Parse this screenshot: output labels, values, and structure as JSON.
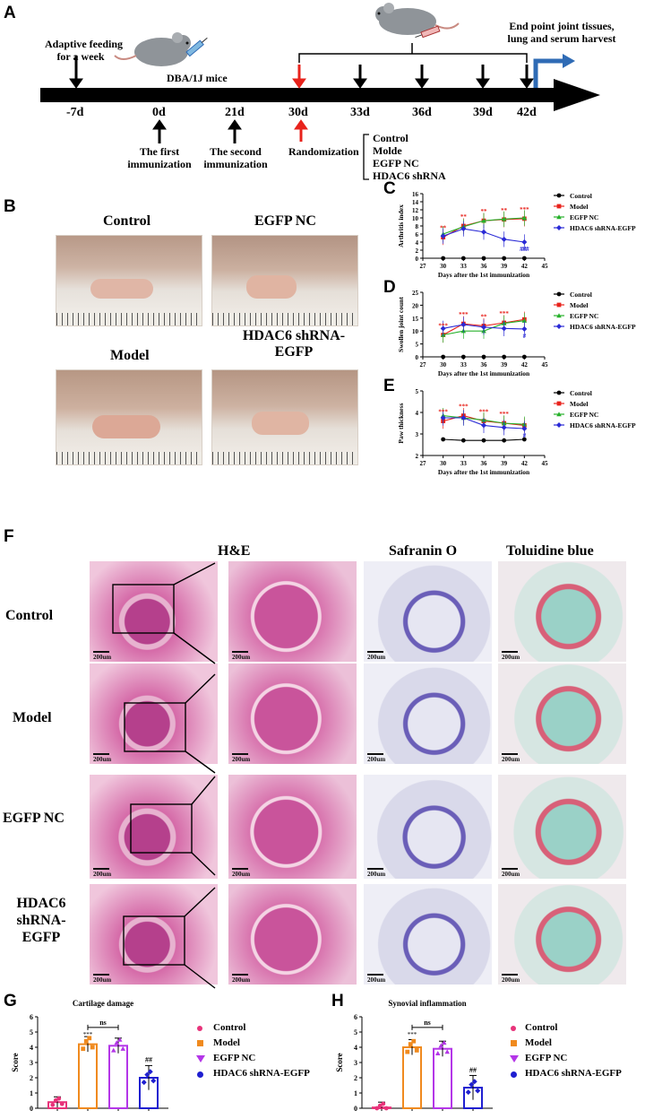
{
  "panels": {
    "A": "A",
    "B": "B",
    "C": "C",
    "D": "D",
    "E": "E",
    "F": "F",
    "G": "G",
    "H": "H"
  },
  "timeline": {
    "adaptive_feeding": "Adaptive feeding\nfor a week",
    "mouse_strain": "DBA/1J mice",
    "end_point": "End point joint tissues,\nlung and serum harvest",
    "days": [
      "-7d",
      "0d",
      "21d",
      "30d",
      "33d",
      "36d",
      "39d",
      "42d"
    ],
    "first_immunization": "The first\nimmunization",
    "second_immunization": "The second\nimmunization",
    "randomization": "Randomization",
    "groups": [
      "Control",
      "Molde",
      "EGFP NC",
      "HDAC6 shRNA"
    ]
  },
  "photos": {
    "control": "Control",
    "egfp_nc": "EGFP NC",
    "model": "Model",
    "hdac6": "HDAC6 shRNA-\nEGFP"
  },
  "histology": {
    "columns": [
      "H&E",
      "Safranin O",
      "Toluidine blue"
    ],
    "rows": [
      "Control",
      "Model",
      "EGFP NC",
      "HDAC6\nshRNA-\nEGFP"
    ],
    "scale": "200um"
  },
  "legend": [
    "Control",
    "Model",
    "EGFP NC",
    "HDAC6 shRNA-EGFP"
  ],
  "colors": {
    "control": "#000000",
    "model": "#e8231c",
    "egfp": "#27b12b",
    "hdac6": "#2a2ad6",
    "g_control": "#e8337a",
    "g_model": "#f08a1e",
    "g_egfp": "#b436e8",
    "g_hdac6": "#1f1fd0",
    "arrow_red": "#e8231c",
    "arrow_blue": "#2f6bb5"
  },
  "chart_data": [
    {
      "id": "C",
      "type": "line",
      "xlabel": "Days after the 1st immunization",
      "ylabel": "Arthritis index",
      "x": [
        30,
        33,
        36,
        39,
        42
      ],
      "xlim": [
        27,
        45
      ],
      "xticks": [
        27,
        30,
        33,
        36,
        39,
        42,
        45
      ],
      "ylim": [
        0,
        16
      ],
      "yticks": [
        0,
        2,
        4,
        6,
        8,
        10,
        12,
        14,
        16
      ],
      "series": [
        {
          "name": "Control",
          "values": [
            0,
            0,
            0,
            0,
            0
          ]
        },
        {
          "name": "Model",
          "values": [
            5.2,
            8,
            9.3,
            9.6,
            9.8
          ]
        },
        {
          "name": "EGFP NC",
          "values": [
            6,
            7.8,
            9.3,
            9.7,
            10
          ]
        },
        {
          "name": "HDAC6 shRNA-EGFP",
          "values": [
            5.5,
            7.3,
            6.5,
            4.7,
            4.0
          ]
        }
      ],
      "annotations": [
        "**",
        "**",
        "**",
        "**",
        "***",
        "##",
        "###"
      ]
    },
    {
      "id": "D",
      "type": "line",
      "xlabel": "Days after the 1st immunization",
      "ylabel": "Swollen joint count",
      "x": [
        30,
        33,
        36,
        39,
        42
      ],
      "xlim": [
        27,
        45
      ],
      "xticks": [
        27,
        30,
        33,
        36,
        39,
        42,
        45
      ],
      "ylim": [
        0,
        25
      ],
      "yticks": [
        0,
        5,
        10,
        15,
        20,
        25
      ],
      "series": [
        {
          "name": "Control",
          "values": [
            0,
            0,
            0,
            0,
            0
          ]
        },
        {
          "name": "Model",
          "values": [
            8.5,
            12.8,
            12,
            13.2,
            14.5
          ]
        },
        {
          "name": "EGFP NC",
          "values": [
            8.5,
            10,
            10,
            13,
            14
          ]
        },
        {
          "name": "HDAC6 shRNA-EGFP",
          "values": [
            11,
            12.5,
            11.5,
            11,
            10.8
          ]
        }
      ],
      "annotations": [
        "***",
        "***",
        "**",
        "***",
        "#"
      ]
    },
    {
      "id": "E",
      "type": "line",
      "xlabel": "Days after the 1st immunization",
      "ylabel": "Paw thickness",
      "x": [
        30,
        33,
        36,
        39,
        42
      ],
      "xlim": [
        27,
        45
      ],
      "xticks": [
        27,
        30,
        33,
        36,
        39,
        42,
        45
      ],
      "ylim": [
        2,
        5
      ],
      "yticks": [
        2,
        3,
        4,
        5
      ],
      "series": [
        {
          "name": "Control",
          "values": [
            2.75,
            2.7,
            2.7,
            2.7,
            2.75
          ]
        },
        {
          "name": "Model",
          "values": [
            3.6,
            3.85,
            3.6,
            3.5,
            3.4
          ]
        },
        {
          "name": "EGFP NC",
          "values": [
            3.85,
            3.75,
            3.65,
            3.5,
            3.45
          ]
        },
        {
          "name": "HDAC6 shRNA-EGFP",
          "values": [
            3.75,
            3.75,
            3.4,
            3.3,
            3.25
          ]
        }
      ],
      "annotations": [
        "***",
        "***",
        "***",
        "***",
        "#"
      ]
    },
    {
      "id": "G",
      "type": "bar",
      "title": "Cartilage damage",
      "ylabel": "Score",
      "ylim": [
        0,
        6
      ],
      "yticks": [
        0,
        1,
        2,
        3,
        4,
        5,
        6
      ],
      "categories": [
        "Control",
        "Model",
        "EGFP NC",
        "HDAC6 shRNA-EGFP"
      ],
      "values": [
        0.4,
        4.2,
        4.1,
        2.0
      ],
      "annotations": [
        "ns",
        "***",
        "##"
      ]
    },
    {
      "id": "H",
      "type": "bar",
      "title": "Synovial inflammation",
      "ylabel": "Score",
      "ylim": [
        0,
        6
      ],
      "yticks": [
        0,
        1,
        2,
        3,
        4,
        5,
        6
      ],
      "categories": [
        "Control",
        "Model",
        "EGFP NC",
        "HDAC6 shRNA-EGFP"
      ],
      "values": [
        0.05,
        4.0,
        3.9,
        1.35
      ],
      "annotations": [
        "ns",
        "***",
        "##"
      ]
    }
  ]
}
